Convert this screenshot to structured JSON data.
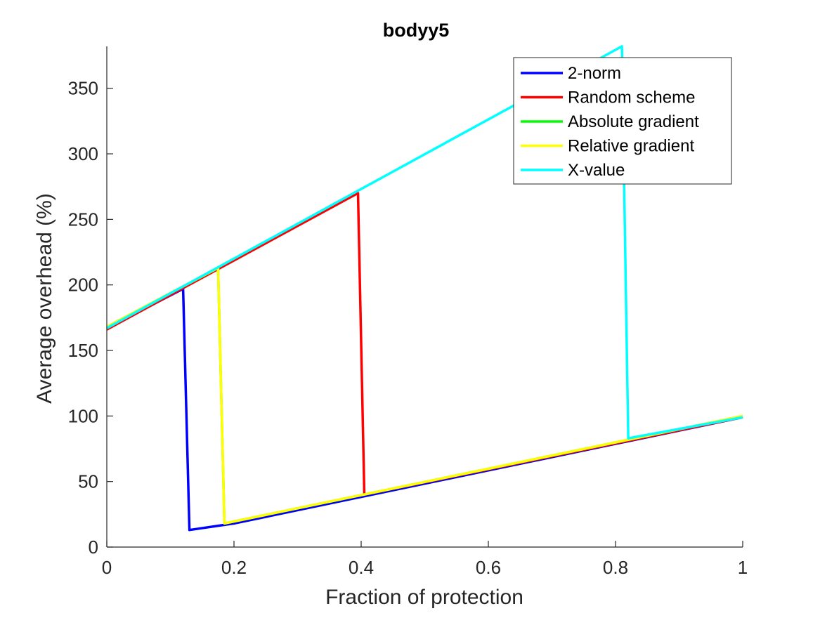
{
  "chart_data": {
    "type": "line",
    "title": "bodyy5",
    "xlabel": "Fraction of protection",
    "ylabel": "Average overhead (%)",
    "xlim": [
      0,
      1
    ],
    "ylim": [
      0,
      382
    ],
    "xticks": [
      0,
      0.2,
      0.4,
      0.6,
      0.8,
      1
    ],
    "xtick_labels": [
      "0",
      "0.2",
      "0.4",
      "0.6",
      "0.8",
      "1"
    ],
    "yticks": [
      0,
      50,
      100,
      150,
      200,
      250,
      300,
      350
    ],
    "ytick_labels": [
      "0",
      "50",
      "100",
      "150",
      "200",
      "250",
      "300",
      "350"
    ],
    "grid": false,
    "legend_position": "top-right",
    "series": [
      {
        "name": "2-norm",
        "color": "#0000ff",
        "x": [
          0,
          0.12,
          0.13,
          0.2,
          1.0
        ],
        "y": [
          167,
          197,
          13,
          18,
          99
        ]
      },
      {
        "name": "Random scheme",
        "color": "#ff0000",
        "x": [
          0,
          0.395,
          0.405,
          1.0
        ],
        "y": [
          166,
          270,
          40,
          99
        ]
      },
      {
        "name": "Absolute gradient",
        "color": "#00ff00",
        "x": [
          0,
          0.175,
          0.185,
          1.0
        ],
        "y": [
          168,
          213,
          18,
          100
        ]
      },
      {
        "name": "Relative gradient",
        "color": "#ffff00",
        "x": [
          0,
          0.175,
          0.185,
          1.0
        ],
        "y": [
          168,
          213,
          18,
          100
        ]
      },
      {
        "name": "X-value",
        "color": "#00ffff",
        "x": [
          0,
          0.81,
          0.82,
          1.0
        ],
        "y": [
          167,
          382,
          83,
          99
        ]
      }
    ]
  }
}
